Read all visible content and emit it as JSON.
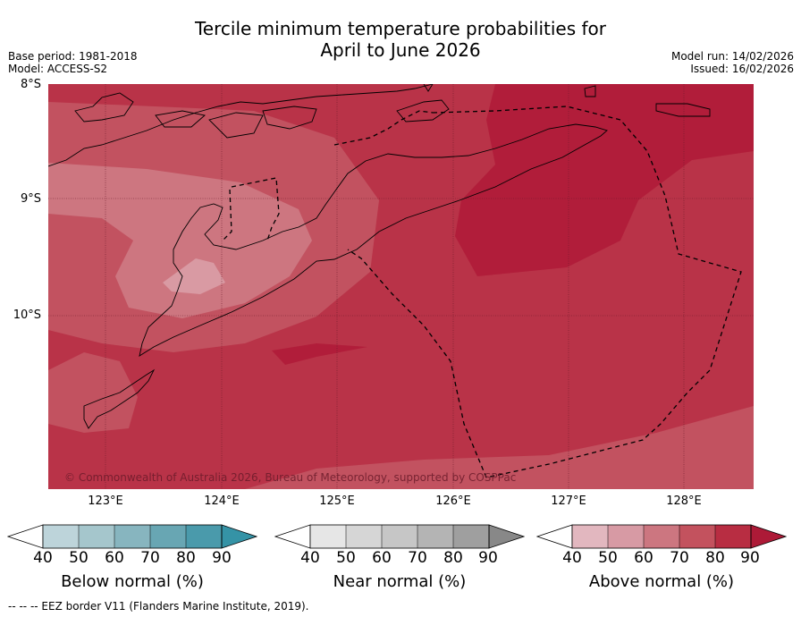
{
  "title_line1": "Tercile minimum temperature probabilities for",
  "title_line2": "April to June 2026",
  "base_period": "Base period: 1981-2018",
  "model": "Model: ACCESS-S2",
  "model_run": "Model run: 14/02/2026",
  "issued": "Issued: 16/02/2026",
  "lat_labels": [
    "8°S",
    "9°S",
    "10°S"
  ],
  "lon_labels": [
    "123°E",
    "124°E",
    "125°E",
    "126°E",
    "127°E",
    "128°E"
  ],
  "copyright": "© Commonwealth of Australia 2026, Bureau of Meteorology, supported by COSPPac",
  "legends": {
    "below": {
      "label": "Below normal (%)",
      "ticks": [
        "40",
        "50",
        "60",
        "70",
        "80",
        "90"
      ],
      "colors": [
        "#ffffff",
        "#bdd4da",
        "#a5c6cc",
        "#87b5bf",
        "#68a6b3",
        "#4a9aab",
        "#3593a6"
      ]
    },
    "near": {
      "label": "Near normal (%)",
      "ticks": [
        "40",
        "50",
        "60",
        "70",
        "80",
        "90"
      ],
      "colors": [
        "#ffffff",
        "#e6e6e6",
        "#d6d6d6",
        "#c6c6c6",
        "#b4b4b4",
        "#9f9f9f",
        "#888888"
      ]
    },
    "above": {
      "label": "Above normal (%)",
      "ticks": [
        "40",
        "50",
        "60",
        "70",
        "80",
        "90"
      ],
      "colors": [
        "#ffffff",
        "#e2b7bf",
        "#d79aa4",
        "#cc7680",
        "#c3525e",
        "#b82d42",
        "#ad1a37"
      ]
    }
  },
  "footer": "-- -- -- EEZ border V11 (Flanders Marine Institute, 2019).",
  "map_colors": {
    "p90": "#b11d3a",
    "p80": "#b93348",
    "p70": "#c25260",
    "p60": "#cd7680",
    "p50": "#d99aa3"
  }
}
